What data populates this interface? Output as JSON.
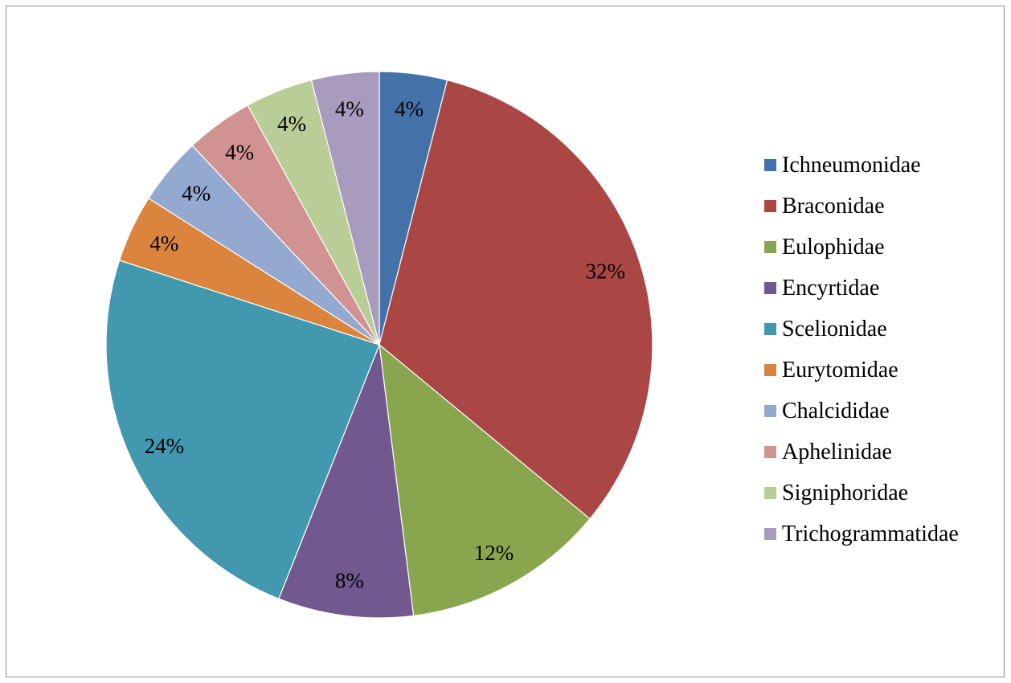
{
  "chart_data": {
    "type": "pie",
    "title": "",
    "legend_position": "right",
    "slices": [
      {
        "name": "Ichneumonidae",
        "value": 4,
        "label": "4%",
        "color": "#4472a8"
      },
      {
        "name": "Braconidae",
        "value": 32,
        "label": "32%",
        "color": "#aa4744"
      },
      {
        "name": "Eulophidae",
        "value": 12,
        "label": "12%",
        "color": "#89a54e"
      },
      {
        "name": "Encyrtidae",
        "value": 8,
        "label": "8%",
        "color": "#71588f"
      },
      {
        "name": "Scelionidae",
        "value": 24,
        "label": "24%",
        "color": "#4198af"
      },
      {
        "name": "Eurytomidae",
        "value": 4,
        "label": "4%",
        "color": "#db843d"
      },
      {
        "name": "Chalcididae",
        "value": 4,
        "label": "4%",
        "color": "#93a9cf"
      },
      {
        "name": "Aphelinidae",
        "value": 4,
        "label": "4%",
        "color": "#d19392"
      },
      {
        "name": "Signiphoridae",
        "value": 4,
        "label": "4%",
        "color": "#b9cd96"
      },
      {
        "name": "Trichogrammatidae",
        "value": 4,
        "label": "4%",
        "color": "#a99bbd"
      }
    ]
  }
}
